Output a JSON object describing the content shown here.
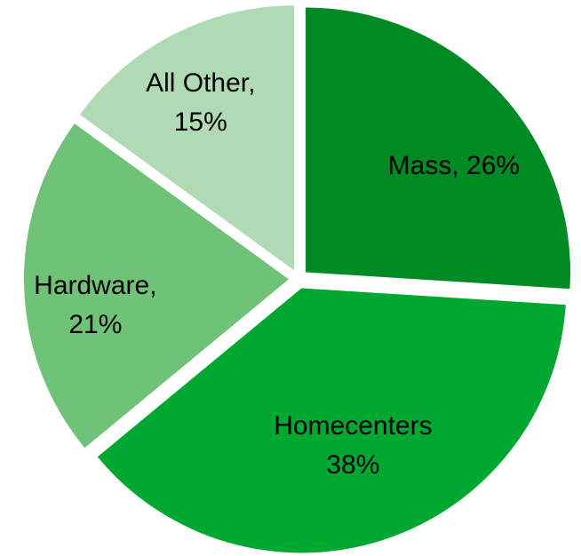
{
  "chart_data": {
    "type": "pie",
    "categories": [
      "Mass,",
      "Homecenters",
      "Hardware,",
      "All Other,"
    ],
    "values": [
      26,
      38,
      21,
      15
    ],
    "value_labels": [
      "26%",
      "38%",
      "21%",
      "15%"
    ],
    "colors": [
      "#008a25",
      "#00a832",
      "#6fc278",
      "#b0dab4"
    ]
  }
}
